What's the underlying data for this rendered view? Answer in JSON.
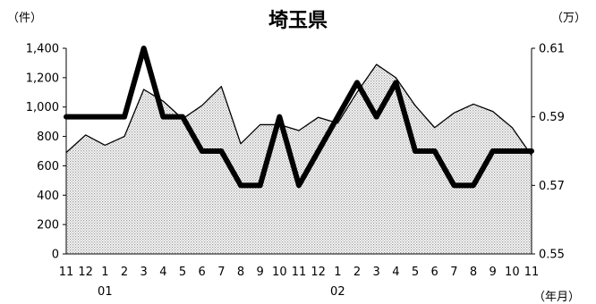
{
  "chart_data": {
    "type": "area",
    "title": "埼玉県",
    "left_unit": "（件）",
    "right_unit": "（万）",
    "x_unit": "（年月）",
    "months": [
      "11",
      "12",
      "1",
      "2",
      "3",
      "4",
      "5",
      "6",
      "7",
      "8",
      "9",
      "10",
      "11",
      "12",
      "1",
      "2",
      "3",
      "4",
      "5",
      "6",
      "7",
      "8",
      "9",
      "10",
      "11"
    ],
    "year_labels": [
      {
        "label": "01",
        "index": 2
      },
      {
        "label": "02",
        "index": 14
      }
    ],
    "y_left": {
      "min": 0,
      "max": 1400,
      "ticks": [
        "0",
        "200",
        "400",
        "600",
        "800",
        "1,000",
        "1,200",
        "1,400"
      ]
    },
    "y_right": {
      "min": 0.55,
      "max": 0.61,
      "ticks": [
        "0.55",
        "0.57",
        "0.59",
        "0.61"
      ]
    },
    "series": [
      {
        "axis": "left",
        "style": "dotted-area",
        "values": [
          690,
          810,
          740,
          800,
          1120,
          1040,
          920,
          1010,
          1140,
          750,
          880,
          880,
          840,
          930,
          890,
          1100,
          1290,
          1200,
          1010,
          860,
          960,
          1020,
          970,
          860,
          670
        ]
      },
      {
        "axis": "right",
        "style": "thick-line",
        "values": [
          0.59,
          0.59,
          0.59,
          0.59,
          0.61,
          0.59,
          0.59,
          0.58,
          0.58,
          0.57,
          0.57,
          0.59,
          0.57,
          0.58,
          0.59,
          0.6,
          0.59,
          0.6,
          0.58,
          0.58,
          0.57,
          0.57,
          0.58,
          0.58,
          0.58
        ]
      }
    ],
    "colors": {
      "area_fill": "#d8d8d8",
      "line": "#000000"
    }
  }
}
